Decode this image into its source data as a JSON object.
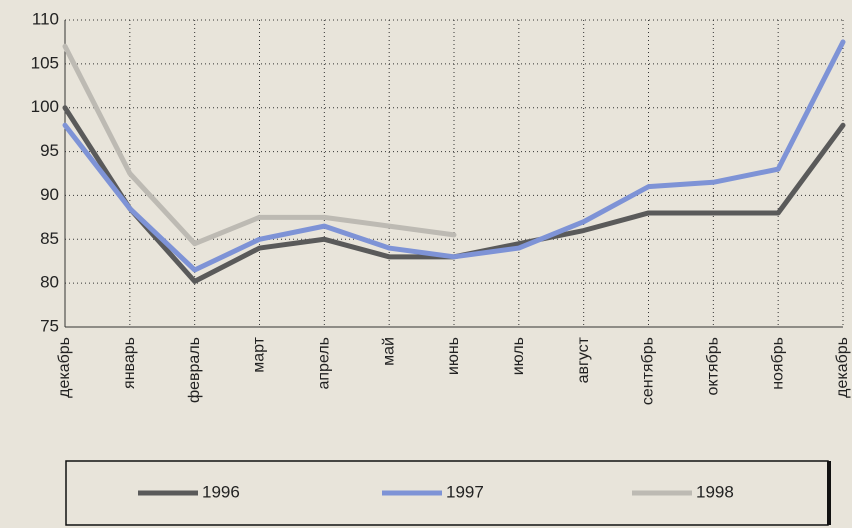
{
  "chart_data": {
    "type": "line",
    "categories": [
      "декабрь",
      "январь",
      "февраль",
      "март",
      "апрель",
      "май",
      "июнь",
      "июль",
      "август",
      "сентябрь",
      "октябрь",
      "ноябрь",
      "декабрь"
    ],
    "series": [
      {
        "name": "1996",
        "color": "#5a5a5a",
        "values": [
          100,
          88.5,
          80.2,
          84,
          85,
          83,
          83,
          84.5,
          86,
          88,
          88,
          88,
          98
        ]
      },
      {
        "name": "1997",
        "color": "#7e93d6",
        "values": [
          98,
          88.5,
          81.5,
          85,
          86.5,
          84,
          83,
          84,
          87,
          91,
          91.5,
          93,
          107.5
        ]
      },
      {
        "name": "1998",
        "color": "#bdbab3",
        "values": [
          107,
          92.5,
          84.5,
          87.5,
          87.5,
          86.5,
          85.5,
          null,
          null,
          null,
          null,
          null,
          null
        ]
      }
    ],
    "ylim": [
      75,
      110
    ],
    "yticks": [
      75,
      80,
      85,
      90,
      95,
      100,
      105,
      110
    ],
    "grid": true,
    "legend": "bottom"
  }
}
